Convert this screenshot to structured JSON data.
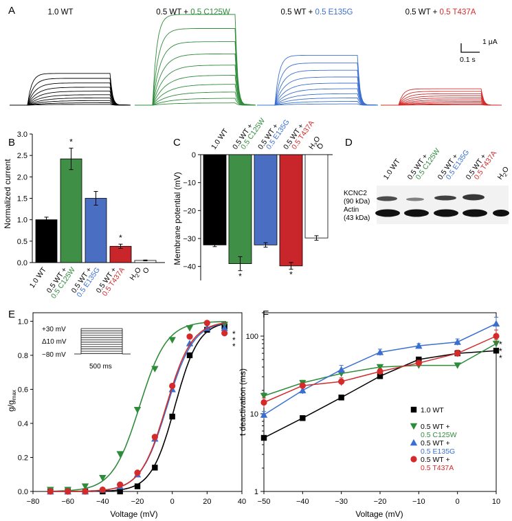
{
  "colors": {
    "wt": "#000000",
    "c125w": "#2e8b3a",
    "e135g": "#3a6fd0",
    "t437a": "#d42a2a"
  },
  "panels": {
    "a": "A",
    "b": "B",
    "c": "C",
    "d": "D",
    "e": "E",
    "f": "F"
  },
  "panel_a": {
    "titles": [
      {
        "prefix": "1.0 WT",
        "suffix": ""
      },
      {
        "prefix": "0.5 WT + ",
        "suffix": "0.5 C125W"
      },
      {
        "prefix": "0.5 WT + ",
        "suffix": "0.5 E135G"
      },
      {
        "prefix": "0.5 WT + ",
        "suffix": "0.5 T437A"
      }
    ],
    "scale_current": "1 μA",
    "scale_time": "0.1 s",
    "trace_amplitudes": [
      0.35,
      1.0,
      0.55,
      0.18
    ]
  },
  "western": {
    "labels": [
      "1.0 WT",
      "0.5 WT +",
      "0.5 C125W",
      "0.5 WT +",
      "0.5 E135G",
      "0.5 WT +",
      "0.5 T437A",
      "H",
      "2",
      "O"
    ],
    "kcnc2": "KCNC2",
    "kcnc2_kda": "(90 kDa)",
    "actin": "Actin",
    "actin_kda": "(43 kDa)"
  },
  "chart_data": [
    {
      "panel": "B",
      "type": "bar",
      "categories": [
        "1.0 WT",
        "0.5 WT + 0.5 C125W",
        "0.5 WT + 0.5 E135G",
        "0.5 WT + 0.5 T437A",
        "H2O"
      ],
      "category_lines": [
        [
          "1.0 WT",
          ""
        ],
        [
          "0.5 WT +",
          "0.5 C125W"
        ],
        [
          "0.5 WT +",
          "0.5 E135G"
        ],
        [
          "0.5 WT +",
          "0.5 T437A"
        ],
        [
          "H",
          "O"
        ]
      ],
      "values": [
        1.0,
        2.42,
        1.5,
        0.38,
        0.05
      ],
      "errors": [
        0.06,
        0.25,
        0.16,
        0.05,
        0.01
      ],
      "significance": [
        "",
        "*",
        "",
        "*",
        ""
      ],
      "colors": [
        "#000000",
        "#3f8f46",
        "#4a6fc2",
        "#c8262a",
        "#ffffff"
      ],
      "ylabel": "Normalized current",
      "ylim": [
        0,
        3.0
      ],
      "yticks": [
        "0.0",
        "0.5",
        "1.0",
        "1.5",
        "2.0",
        "2.5",
        "3.0"
      ]
    },
    {
      "panel": "C",
      "type": "bar",
      "categories": [
        "1.0 WT",
        "0.5 WT + 0.5 C125W",
        "0.5 WT + 0.5 E135G",
        "0.5 WT + 0.5 T437A",
        "H2O"
      ],
      "category_lines": [
        [
          "1.0 WT",
          ""
        ],
        [
          "0.5 WT +",
          "0.5 C125W"
        ],
        [
          "0.5 WT +",
          "0.5 E135G"
        ],
        [
          "0.5 WT +",
          "0.5 T437A"
        ],
        [
          "H",
          "O"
        ]
      ],
      "values": [
        -32.3,
        -39.0,
        -32.3,
        -39.8,
        -29.8
      ],
      "errors": [
        0.6,
        2.5,
        0.8,
        1.2,
        0.8
      ],
      "significance": [
        "",
        "*",
        "",
        "*",
        ""
      ],
      "colors": [
        "#000000",
        "#3f8f46",
        "#4a6fc2",
        "#c8262a",
        "#ffffff"
      ],
      "ylabel": "Membrane potential (mV)",
      "ylim": [
        -45,
        0
      ],
      "yticks": [
        "0",
        "−10",
        "−20",
        "−30",
        "−40"
      ]
    },
    {
      "panel": "E",
      "type": "scatter",
      "xlabel": "Voltage (mV)",
      "ylabel_main": "g/g",
      "ylabel_sub": "max",
      "xlim": [
        -80,
        40
      ],
      "ylim": [
        0,
        1.05
      ],
      "xticks": [
        "−80",
        "−60",
        "−40",
        "−20",
        "0",
        "20",
        "40"
      ],
      "yticks": [
        "0.0",
        "0.2",
        "0.4",
        "0.6",
        "0.8",
        "1.0"
      ],
      "x": [
        -70,
        -60,
        -50,
        -40,
        -30,
        -20,
        -10,
        0,
        10,
        20,
        30
      ],
      "series": [
        {
          "color": "#000000",
          "marker": "square",
          "v_half": 1.5,
          "slope": 6.8,
          "values": [
            0.0,
            0.0,
            0.0,
            0.0,
            0.0,
            0.03,
            0.14,
            0.44,
            0.8,
            0.95,
            0.97
          ]
        },
        {
          "color": "#2e8b3a",
          "marker": "tri-down",
          "v_half": -18.8,
          "slope": 7.8,
          "values": [
            0.01,
            0.01,
            0.03,
            0.08,
            0.22,
            0.48,
            0.72,
            0.89,
            0.96,
            0.98,
            0.98
          ]
        },
        {
          "color": "#3a6fd0",
          "marker": "tri-up",
          "v_half": -3.0,
          "slope": 7.6,
          "values": [
            0.0,
            0.0,
            0.0,
            0.01,
            0.03,
            0.1,
            0.31,
            0.6,
            0.87,
            0.96,
            0.96
          ]
        },
        {
          "color": "#d42a2a",
          "marker": "circle",
          "v_half": -3.5,
          "slope": 7.4,
          "values": [
            0.0,
            0.0,
            0.0,
            0.01,
            0.04,
            0.11,
            0.32,
            0.62,
            0.91,
            0.99,
            0.93
          ]
        }
      ],
      "significance": "***",
      "inset": {
        "top": "+30 mV",
        "step": "Δ10 mV",
        "bottom": "−80 mV",
        "duration": "500 ms"
      }
    },
    {
      "panel": "F",
      "type": "line",
      "yscale": "log",
      "xlabel": "Voltage (mV)",
      "ylabel": "t deactivation (ms)",
      "xlim": [
        -50,
        10
      ],
      "ylim": [
        1,
        200
      ],
      "xticks": [
        "−50",
        "−40",
        "−30",
        "−20",
        "−10",
        "0",
        "10"
      ],
      "yticks": [
        "1",
        "10",
        "100"
      ],
      "x": [
        -50,
        -40,
        -30,
        -20,
        -10,
        0,
        10
      ],
      "series": [
        {
          "name_lines": [
            "1.0 WT",
            ""
          ],
          "color": "#000000",
          "marker": "square",
          "values": [
            4.9,
            8.8,
            16.2,
            30.5,
            50.0,
            60.0,
            65.0
          ],
          "err": [
            0.3,
            0.5,
            0.8,
            2,
            3,
            4,
            5
          ]
        },
        {
          "name_lines": [
            "0.5 WT +",
            "0.5 C125W"
          ],
          "color": "#2e8b3a",
          "marker": "tri-down",
          "values": [
            17.0,
            25.0,
            33.0,
            40.0,
            42.0,
            42.0,
            80.0
          ],
          "err": [
            1.5,
            2,
            3,
            3,
            3,
            3,
            10
          ]
        },
        {
          "name_lines": [
            "0.5 WT +",
            "0.5 E135G"
          ],
          "color": "#3a6fd0",
          "marker": "tri-up",
          "values": [
            9.7,
            20.0,
            37.0,
            62.0,
            75.0,
            84.0,
            145.0
          ],
          "err": [
            1,
            2,
            5,
            6,
            5,
            8,
            30
          ]
        },
        {
          "name_lines": [
            "0.5 WT +",
            "0.5 T437A"
          ],
          "color": "#d42a2a",
          "marker": "circle",
          "values": [
            14.0,
            23.0,
            26.0,
            35.0,
            45.0,
            60.0,
            100.0
          ],
          "err": [
            2,
            2,
            3,
            3,
            4,
            6,
            20
          ]
        }
      ],
      "significance": [
        "*",
        "*",
        "*"
      ],
      "legend_position": "bottom-right"
    }
  ]
}
